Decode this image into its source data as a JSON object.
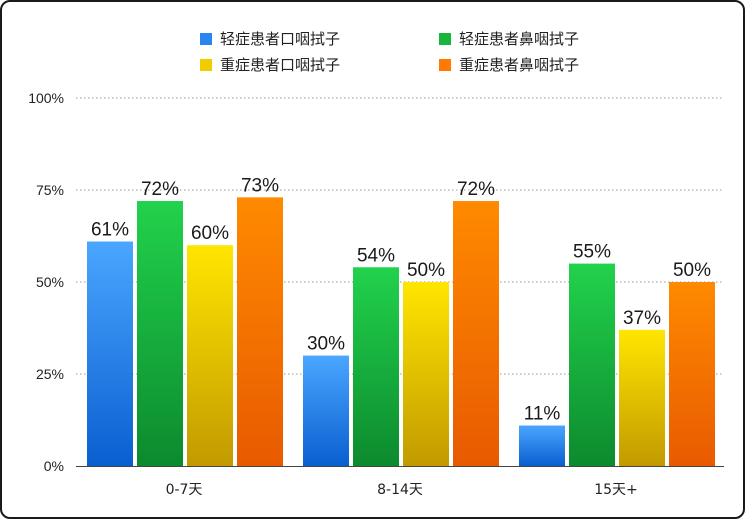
{
  "chart_data": {
    "type": "bar",
    "categories": [
      "0-7天",
      "8-14天",
      "15天+"
    ],
    "series": [
      {
        "name": "轻症患者口咽拭子",
        "values": [
          61,
          30,
          11
        ],
        "color_top": "#4aa6ff",
        "color_bottom": "#0a5fd0",
        "legend_color": "#2a86ee"
      },
      {
        "name": "轻症患者鼻咽拭子",
        "values": [
          72,
          54,
          55
        ],
        "color_top": "#22d24c",
        "color_bottom": "#0c8a2e",
        "legend_color": "#18b43c"
      },
      {
        "name": "重症患者口咽拭子",
        "values": [
          60,
          50,
          37
        ],
        "color_top": "#ffe600",
        "color_bottom": "#c29a00",
        "legend_color": "#f0cc00"
      },
      {
        "name": "重症患者鼻咽拭子",
        "values": [
          73,
          72,
          50
        ],
        "color_top": "#ff8a00",
        "color_bottom": "#e85a00",
        "legend_color": "#ff7a00"
      }
    ],
    "yticks": [
      "0%",
      "25%",
      "50%",
      "75%",
      "100%"
    ],
    "ylim": [
      0,
      100
    ],
    "value_suffix": "%",
    "grid": "dotted horizontal",
    "legend_position": "top"
  }
}
